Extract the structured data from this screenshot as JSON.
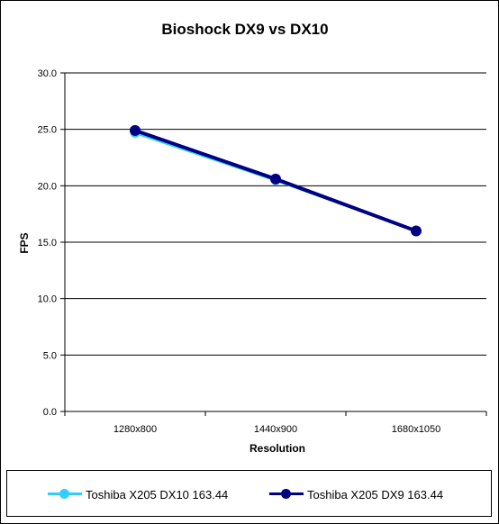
{
  "chart_data": {
    "type": "line",
    "title": "Bioshock DX9 vs DX10",
    "xlabel": "Resolution",
    "ylabel": "FPS",
    "categories": [
      "1280x800",
      "1440x900",
      "1680x1050"
    ],
    "ylim": [
      0,
      30
    ],
    "ytick_labels": [
      "0.0",
      "5.0",
      "10.0",
      "15.0",
      "20.0",
      "25.0",
      "30.0"
    ],
    "grid": true,
    "legend_position": "bottom",
    "series": [
      {
        "name": "Toshiba X205 DX10 163.44",
        "values": [
          24.7,
          20.5,
          16.0
        ],
        "color": "#33ccff"
      },
      {
        "name": "Toshiba X205 DX9 163.44",
        "values": [
          24.9,
          20.6,
          16.0
        ],
        "color": "#000080"
      }
    ]
  }
}
